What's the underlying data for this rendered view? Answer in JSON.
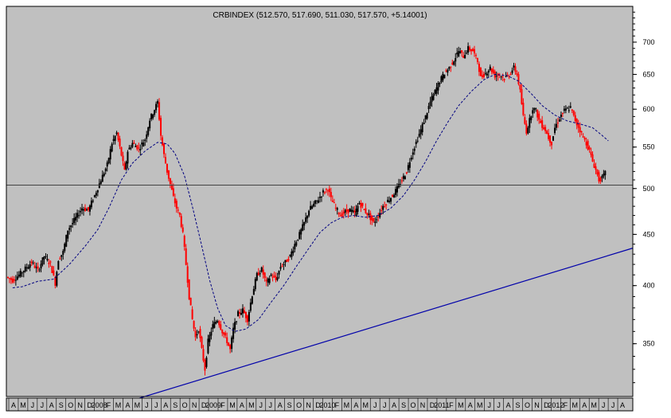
{
  "chart_data": {
    "type": "candlestick",
    "title": "CRBINDEX (512.570, 517.690, 511.030, 517.570, +5.14001)",
    "y_scale": "log",
    "ylim": [
      310,
      760
    ],
    "y_ticks": [
      350,
      400,
      450,
      500,
      550,
      600,
      650,
      700
    ],
    "x_tick_labels": [
      "A",
      "M",
      "J",
      "J",
      "A",
      "S",
      "O",
      "N",
      "D",
      "2008",
      "F",
      "M",
      "A",
      "M",
      "J",
      "J",
      "A",
      "S",
      "O",
      "N",
      "D",
      "2009",
      "F",
      "M",
      "A",
      "M",
      "J",
      "J",
      "A",
      "S",
      "O",
      "N",
      "D",
      "2010",
      "F",
      "M",
      "A",
      "M",
      "J",
      "J",
      "A",
      "S",
      "O",
      "N",
      "D",
      "2011",
      "F",
      "M",
      "A",
      "M",
      "J",
      "J",
      "A",
      "S",
      "O",
      "N",
      "D",
      "2012",
      "F",
      "M",
      "A",
      "M",
      "J",
      "J",
      "A"
    ],
    "price_series": [
      [
        0,
        408
      ],
      [
        8,
        405
      ],
      [
        16,
        410
      ],
      [
        24,
        416
      ],
      [
        32,
        422
      ],
      [
        40,
        414
      ],
      [
        48,
        428
      ],
      [
        56,
        420
      ],
      [
        62,
        402
      ],
      [
        66,
        425
      ],
      [
        72,
        432
      ],
      [
        78,
        455
      ],
      [
        84,
        462
      ],
      [
        90,
        470
      ],
      [
        96,
        478
      ],
      [
        104,
        476
      ],
      [
        112,
        492
      ],
      [
        120,
        510
      ],
      [
        128,
        528
      ],
      [
        134,
        555
      ],
      [
        140,
        568
      ],
      [
        146,
        540
      ],
      [
        150,
        520
      ],
      [
        154,
        545
      ],
      [
        160,
        555
      ],
      [
        168,
        548
      ],
      [
        176,
        560
      ],
      [
        182,
        586
      ],
      [
        188,
        600
      ],
      [
        192,
        610
      ],
      [
        196,
        565
      ],
      [
        200,
        540
      ],
      [
        204,
        520
      ],
      [
        208,
        505
      ],
      [
        212,
        490
      ],
      [
        216,
        478
      ],
      [
        220,
        470
      ],
      [
        224,
        450
      ],
      [
        228,
        420
      ],
      [
        232,
        390
      ],
      [
        236,
        370
      ],
      [
        240,
        355
      ],
      [
        244,
        362
      ],
      [
        248,
        345
      ],
      [
        252,
        330
      ],
      [
        256,
        352
      ],
      [
        262,
        365
      ],
      [
        268,
        370
      ],
      [
        274,
        360
      ],
      [
        280,
        352
      ],
      [
        284,
        345
      ],
      [
        288,
        362
      ],
      [
        294,
        375
      ],
      [
        300,
        378
      ],
      [
        306,
        370
      ],
      [
        312,
        392
      ],
      [
        318,
        410
      ],
      [
        324,
        415
      ],
      [
        330,
        402
      ],
      [
        336,
        410
      ],
      [
        342,
        405
      ],
      [
        348,
        418
      ],
      [
        354,
        422
      ],
      [
        360,
        428
      ],
      [
        366,
        440
      ],
      [
        372,
        450
      ],
      [
        378,
        462
      ],
      [
        384,
        476
      ],
      [
        390,
        482
      ],
      [
        396,
        488
      ],
      [
        402,
        496
      ],
      [
        408,
        500
      ],
      [
        412,
        488
      ],
      [
        418,
        478
      ],
      [
        424,
        470
      ],
      [
        430,
        474
      ],
      [
        436,
        476
      ],
      [
        442,
        472
      ],
      [
        448,
        484
      ],
      [
        454,
        476
      ],
      [
        460,
        470
      ],
      [
        466,
        462
      ],
      [
        472,
        470
      ],
      [
        478,
        480
      ],
      [
        484,
        486
      ],
      [
        490,
        492
      ],
      [
        496,
        500
      ],
      [
        502,
        510
      ],
      [
        508,
        520
      ],
      [
        514,
        540
      ],
      [
        520,
        556
      ],
      [
        526,
        572
      ],
      [
        532,
        590
      ],
      [
        538,
        610
      ],
      [
        544,
        625
      ],
      [
        550,
        640
      ],
      [
        556,
        652
      ],
      [
        562,
        660
      ],
      [
        568,
        672
      ],
      [
        574,
        686
      ],
      [
        580,
        678
      ],
      [
        586,
        690
      ],
      [
        592,
        686
      ],
      [
        598,
        670
      ],
      [
        602,
        645
      ],
      [
        608,
        652
      ],
      [
        614,
        660
      ],
      [
        620,
        648
      ],
      [
        626,
        650
      ],
      [
        632,
        644
      ],
      [
        638,
        650
      ],
      [
        644,
        660
      ],
      [
        648,
        650
      ],
      [
        652,
        625
      ],
      [
        656,
        590
      ],
      [
        660,
        570
      ],
      [
        664,
        585
      ],
      [
        668,
        602
      ],
      [
        672,
        598
      ],
      [
        676,
        585
      ],
      [
        680,
        578
      ],
      [
        684,
        572
      ],
      [
        688,
        562
      ],
      [
        692,
        555
      ],
      [
        696,
        575
      ],
      [
        700,
        584
      ],
      [
        704,
        592
      ],
      [
        708,
        598
      ],
      [
        712,
        600
      ],
      [
        716,
        602
      ],
      [
        720,
        590
      ],
      [
        724,
        580
      ],
      [
        728,
        572
      ],
      [
        732,
        562
      ],
      [
        736,
        555
      ],
      [
        740,
        545
      ],
      [
        744,
        532
      ],
      [
        748,
        522
      ],
      [
        752,
        510
      ],
      [
        756,
        512
      ],
      [
        760,
        518
      ]
    ],
    "moving_average": [
      [
        8,
        398
      ],
      [
        20,
        399
      ],
      [
        40,
        404
      ],
      [
        60,
        406
      ],
      [
        80,
        420
      ],
      [
        100,
        438
      ],
      [
        116,
        455
      ],
      [
        130,
        478
      ],
      [
        146,
        510
      ],
      [
        160,
        530
      ],
      [
        176,
        545
      ],
      [
        192,
        556
      ],
      [
        204,
        554
      ],
      [
        214,
        542
      ],
      [
        226,
        515
      ],
      [
        236,
        480
      ],
      [
        246,
        445
      ],
      [
        258,
        405
      ],
      [
        268,
        380
      ],
      [
        278,
        365
      ],
      [
        290,
        360
      ],
      [
        304,
        362
      ],
      [
        320,
        370
      ],
      [
        336,
        385
      ],
      [
        352,
        400
      ],
      [
        368,
        418
      ],
      [
        384,
        436
      ],
      [
        398,
        452
      ],
      [
        412,
        462
      ],
      [
        426,
        468
      ],
      [
        440,
        470
      ],
      [
        456,
        468
      ],
      [
        472,
        470
      ],
      [
        488,
        478
      ],
      [
        504,
        492
      ],
      [
        518,
        510
      ],
      [
        532,
        532
      ],
      [
        546,
        558
      ],
      [
        560,
        582
      ],
      [
        574,
        605
      ],
      [
        590,
        625
      ],
      [
        606,
        642
      ],
      [
        620,
        650
      ],
      [
        636,
        648
      ],
      [
        650,
        640
      ],
      [
        666,
        622
      ],
      [
        680,
        605
      ],
      [
        696,
        592
      ],
      [
        712,
        584
      ],
      [
        728,
        580
      ],
      [
        744,
        575
      ],
      [
        756,
        565
      ],
      [
        764,
        558
      ]
    ],
    "horizontal_line": 504,
    "trend_line": {
      "from": [
        116,
        300
      ],
      "to": [
        795,
        436
      ]
    }
  },
  "colors": {
    "background": "#c0c0c0",
    "up_candle": "#000000",
    "down_candle": "#ff0000",
    "moving_average": "#000080",
    "trend_line": "#0000aa",
    "horizontal_line": "#333333"
  }
}
